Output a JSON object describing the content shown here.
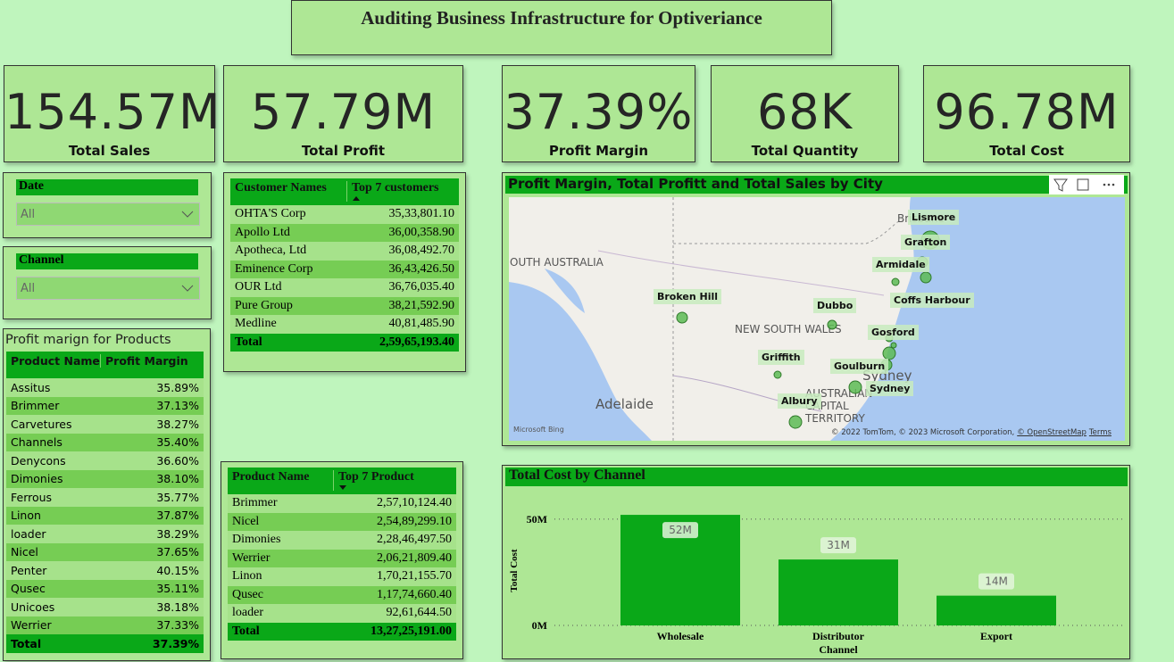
{
  "header": {
    "title": "Auditing Business Infrastructure for Optiveriance"
  },
  "kpis": [
    {
      "value": "154.57M",
      "label": "Total Sales"
    },
    {
      "value": "57.79M",
      "label": "Total Profit"
    },
    {
      "value": "37.39%",
      "label": "Profit Margin"
    },
    {
      "value": "68K",
      "label": "Total Quantity"
    },
    {
      "value": "96.78M",
      "label": "Total Cost"
    }
  ],
  "slicers": [
    {
      "title": "Date",
      "value": "All"
    },
    {
      "title": "Channel",
      "value": "All"
    }
  ],
  "product_margin": {
    "title": "Profit marign for Products",
    "headers": [
      "Product Name",
      "Profit Margin"
    ],
    "rows": [
      [
        "Assitus",
        "35.89%"
      ],
      [
        "Brimmer",
        "37.13%"
      ],
      [
        "Carvetures",
        "38.27%"
      ],
      [
        "Channels",
        "35.40%"
      ],
      [
        "Denycons",
        "36.60%"
      ],
      [
        "Dimonies",
        "38.10%"
      ],
      [
        "Ferrous",
        "35.77%"
      ],
      [
        "Linon",
        "37.87%"
      ],
      [
        "loader",
        "38.29%"
      ],
      [
        "Nicel",
        "37.65%"
      ],
      [
        "Penter",
        "40.15%"
      ],
      [
        "Qusec",
        "35.11%"
      ],
      [
        "Unicoes",
        "38.18%"
      ],
      [
        "Werrier",
        "37.33%"
      ]
    ],
    "total": [
      "Total",
      "37.39%"
    ]
  },
  "customers": {
    "headers": [
      "Customer Names",
      "Top 7 customers"
    ],
    "rows": [
      [
        "OHTA'S Corp",
        "35,33,801.10"
      ],
      [
        "Apollo Ltd",
        "36,00,358.90"
      ],
      [
        "Apotheca, Ltd",
        "36,08,492.70"
      ],
      [
        "Eminence Corp",
        "36,43,426.50"
      ],
      [
        "OUR Ltd",
        "36,76,035.40"
      ],
      [
        "Pure Group",
        "38,21,592.90"
      ],
      [
        "Medline",
        "40,81,485.90"
      ]
    ],
    "total": [
      "Total",
      "2,59,65,193.40"
    ]
  },
  "top_products": {
    "headers": [
      "Product Name",
      "Top 7 Product"
    ],
    "rows": [
      [
        "Brimmer",
        "2,57,10,124.40"
      ],
      [
        "Nicel",
        "2,54,89,299.10"
      ],
      [
        "Dimonies",
        "2,28,46,497.50"
      ],
      [
        "Werrier",
        "2,06,21,809.40"
      ],
      [
        "Linon",
        "1,70,21,155.70"
      ],
      [
        "Qusec",
        "1,17,74,660.40"
      ],
      [
        "loader",
        "92,61,644.50"
      ]
    ],
    "total": [
      "Total",
      "13,27,25,191.00"
    ]
  },
  "map": {
    "title": "Profit Margin, Total Profitt and Total Sales by City",
    "regions": [
      "OUTH AUSTRALIA",
      "NEW SOUTH WALES",
      "Adelaide",
      "Brisbane",
      "Sydney",
      "AUSTRALIAN",
      "CAPITAL",
      "TERRITORY"
    ],
    "cities": [
      "Lismore",
      "Grafton",
      "Armidale",
      "Coffs Harbour",
      "Dubbo",
      "Gosford",
      "Goulburn",
      "Sydney",
      "Griffith",
      "Albury",
      "Broken Hill"
    ],
    "logo": "Microsoft Bing",
    "attribution": [
      "© 2022 TomTom, © 2023 Microsoft Corporation,",
      "© OpenStreetMap",
      "Terms"
    ]
  },
  "chart_data": {
    "type": "bar",
    "title": "Total Cost by Channel",
    "x_label": "Channel",
    "y_label": "Total Cost",
    "categories": [
      "Wholesale",
      "Distributor",
      "Export"
    ],
    "values": [
      52000000,
      31000000,
      14000000
    ],
    "value_labels": [
      "52M",
      "31M",
      "14M"
    ],
    "color": "#0aa818",
    "ylim": [
      0,
      60000000
    ],
    "yticks": [
      {
        "value": 0,
        "label": "0M"
      },
      {
        "value": 50000000,
        "label": "50M"
      }
    ],
    "grid": true
  }
}
